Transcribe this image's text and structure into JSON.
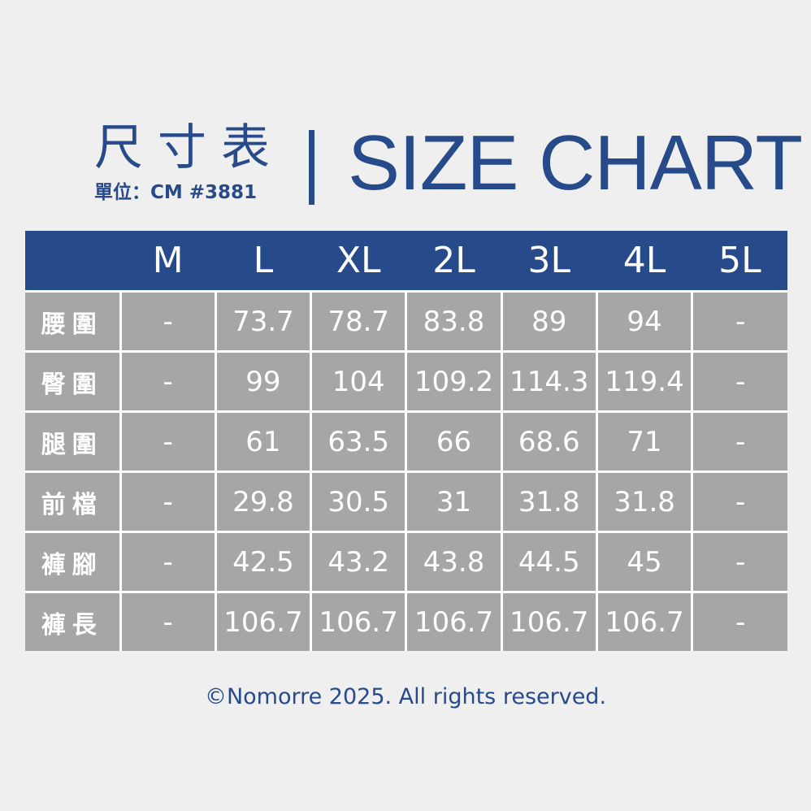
{
  "header": {
    "title_zh": "尺寸表",
    "unit": "單位：CM #3881",
    "title_en": "SIZE CHART"
  },
  "colors": {
    "brand": "#264a8a",
    "cell": "#a6a6a6",
    "background": "#efefef"
  },
  "table": {
    "columns": [
      "",
      "M",
      "L",
      "XL",
      "2L",
      "3L",
      "4L",
      "5L"
    ],
    "rows": [
      {
        "label": "腰圍",
        "values": [
          "-",
          "73.7",
          "78.7",
          "83.8",
          "89",
          "94",
          "-"
        ]
      },
      {
        "label": "臀圍",
        "values": [
          "-",
          "99",
          "104",
          "109.2",
          "114.3",
          "119.4",
          "-"
        ]
      },
      {
        "label": "腿圍",
        "values": [
          "-",
          "61",
          "63.5",
          "66",
          "68.6",
          "71",
          "-"
        ]
      },
      {
        "label": "前檔",
        "values": [
          "-",
          "29.8",
          "30.5",
          "31",
          "31.8",
          "31.8",
          "-"
        ]
      },
      {
        "label": "褲腳",
        "values": [
          "-",
          "42.5",
          "43.2",
          "43.8",
          "44.5",
          "45",
          "-"
        ]
      },
      {
        "label": "褲長",
        "values": [
          "-",
          "106.7",
          "106.7",
          "106.7",
          "106.7",
          "106.7",
          "-"
        ]
      }
    ]
  },
  "footer": "©Nomorre 2025. All rights reserved."
}
